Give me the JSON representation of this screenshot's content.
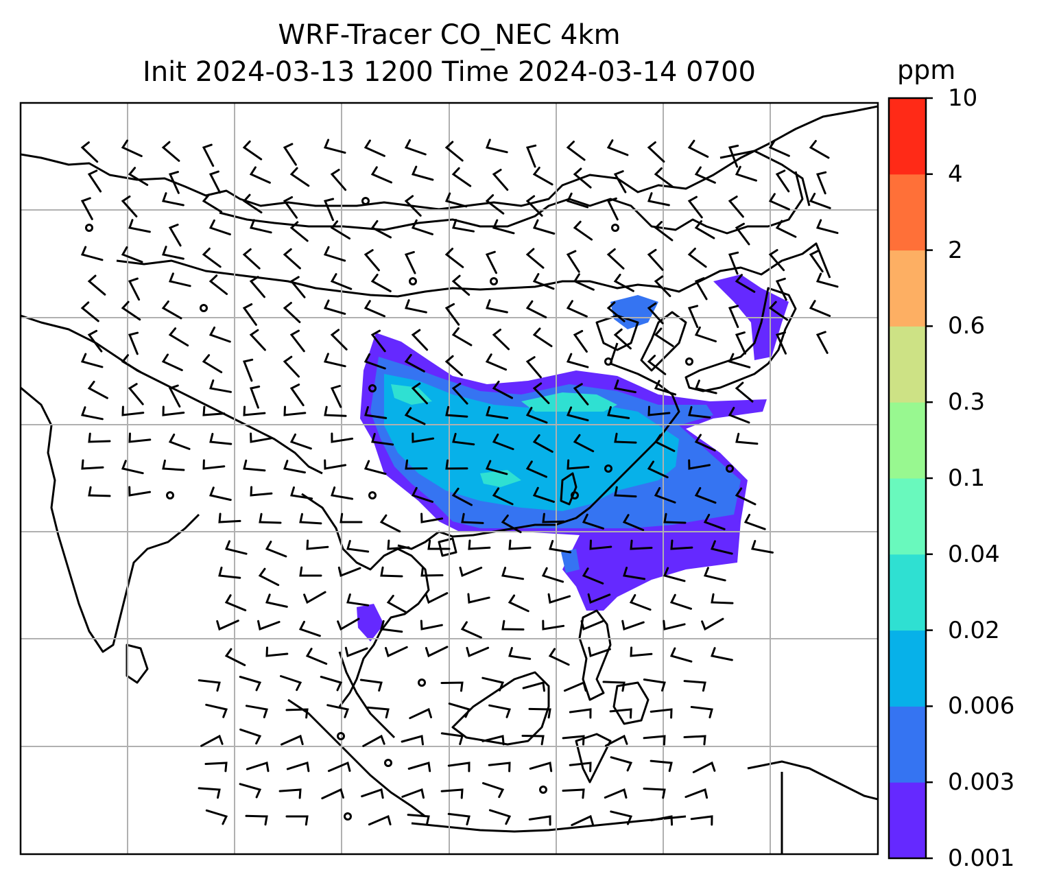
{
  "title": {
    "line1": "WRF-Tracer CO_NEC 4km",
    "line2": "Init 2024-03-13 1200 Time 2024-03-14 0700"
  },
  "colorbar": {
    "unit": "ppm",
    "levels": [
      "0.001",
      "0.003",
      "0.006",
      "0.02",
      "0.04",
      "0.1",
      "0.3",
      "0.6",
      "2",
      "4",
      "10"
    ],
    "colors": [
      "#6529ff",
      "#3574f2",
      "#07b1e9",
      "#2fe0d2",
      "#69f9bd",
      "#98f890",
      "#cde285",
      "#fdaf63",
      "#ff7038",
      "#ff2a17"
    ]
  },
  "map": {
    "variable": "CO tracer concentration",
    "gridlines": true,
    "wind_barbs": true,
    "coastline_color": "#000000",
    "grid_color": "#b0b0b0"
  }
}
